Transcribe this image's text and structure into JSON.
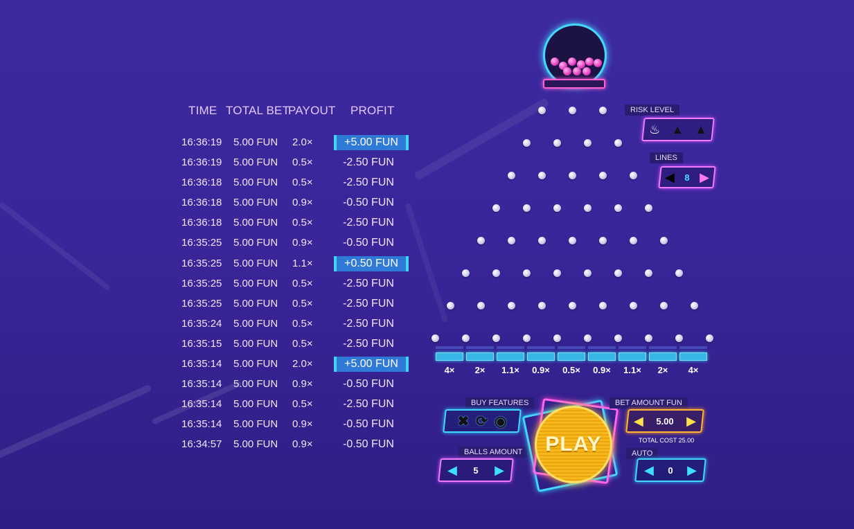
{
  "history": {
    "headers": {
      "time": "TIME",
      "total_bet": "TOTAL BET",
      "payout": "PAYOUT",
      "profit": "PROFIT"
    },
    "rows": [
      {
        "time": "16:36:19",
        "bet": "5.00 FUN",
        "payout": "2.0×",
        "profit": "+5.00 FUN",
        "win": true
      },
      {
        "time": "16:36:19",
        "bet": "5.00 FUN",
        "payout": "0.5×",
        "profit": "-2.50 FUN",
        "win": false
      },
      {
        "time": "16:36:18",
        "bet": "5.00 FUN",
        "payout": "0.5×",
        "profit": "-2.50 FUN",
        "win": false
      },
      {
        "time": "16:36:18",
        "bet": "5.00 FUN",
        "payout": "0.9×",
        "profit": "-0.50 FUN",
        "win": false
      },
      {
        "time": "16:36:18",
        "bet": "5.00 FUN",
        "payout": "0.5×",
        "profit": "-2.50 FUN",
        "win": false
      },
      {
        "time": "16:35:25",
        "bet": "5.00 FUN",
        "payout": "0.9×",
        "profit": "-0.50 FUN",
        "win": false
      },
      {
        "time": "16:35:25",
        "bet": "5.00 FUN",
        "payout": "1.1×",
        "profit": "+0.50 FUN",
        "win": true
      },
      {
        "time": "16:35:25",
        "bet": "5.00 FUN",
        "payout": "0.5×",
        "profit": "-2.50 FUN",
        "win": false
      },
      {
        "time": "16:35:25",
        "bet": "5.00 FUN",
        "payout": "0.5×",
        "profit": "-2.50 FUN",
        "win": false
      },
      {
        "time": "16:35:24",
        "bet": "5.00 FUN",
        "payout": "0.5×",
        "profit": "-2.50 FUN",
        "win": false
      },
      {
        "time": "16:35:15",
        "bet": "5.00 FUN",
        "payout": "0.5×",
        "profit": "-2.50 FUN",
        "win": false
      },
      {
        "time": "16:35:14",
        "bet": "5.00 FUN",
        "payout": "2.0×",
        "profit": "+5.00 FUN",
        "win": true
      },
      {
        "time": "16:35:14",
        "bet": "5.00 FUN",
        "payout": "0.9×",
        "profit": "-0.50 FUN",
        "win": false
      },
      {
        "time": "16:35:14",
        "bet": "5.00 FUN",
        "payout": "0.5×",
        "profit": "-2.50 FUN",
        "win": false
      },
      {
        "time": "16:35:14",
        "bet": "5.00 FUN",
        "payout": "0.9×",
        "profit": "-0.50 FUN",
        "win": false
      },
      {
        "time": "16:34:57",
        "bet": "5.00 FUN",
        "payout": "0.9×",
        "profit": "-0.50 FUN",
        "win": false
      }
    ]
  },
  "board": {
    "peg_rows": 8,
    "multipliers": [
      "4×",
      "2×",
      "1.1×",
      "0.9×",
      "0.5×",
      "0.9×",
      "1.1×",
      "2×",
      "4×"
    ],
    "colors": {
      "slot": "#38b6e6",
      "accent_cyan": "#43d9ff",
      "accent_pink": "#f07cff",
      "accent_orange": "#ffb43a"
    }
  },
  "controls": {
    "risk": {
      "label": "RISK LEVEL",
      "icons": [
        "flame-low-icon",
        "flame-medium-icon",
        "flame-high-icon"
      ]
    },
    "lines": {
      "label": "LINES",
      "value": "8"
    },
    "buy_features": {
      "label": "BUY FEATURES",
      "icons": [
        "cross-swords-icon",
        "swirl-icon",
        "target-icon"
      ]
    },
    "balls_amount": {
      "label": "BALLS AMOUNT",
      "value": "5"
    },
    "play": {
      "label": "PLAY"
    },
    "bet_amount": {
      "label": "BET AMOUNT FUN",
      "value": "5.00",
      "total_cost": "TOTAL COST 25.00"
    },
    "auto": {
      "label": "AUTO",
      "value": "0"
    }
  }
}
